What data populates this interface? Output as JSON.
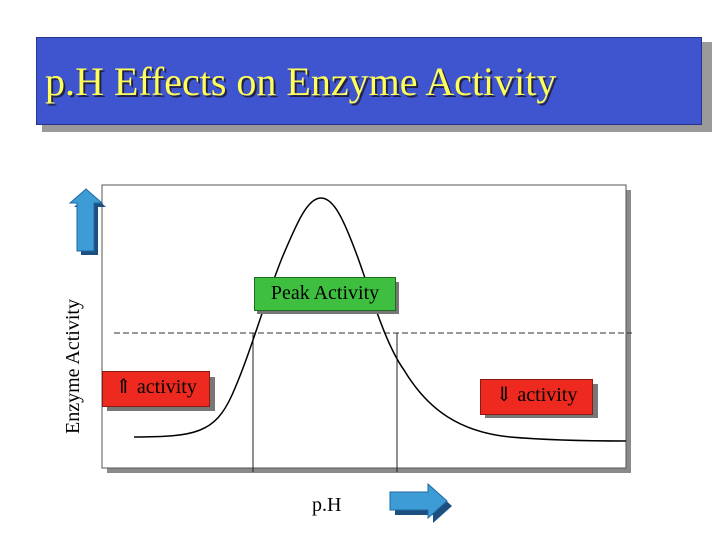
{
  "title": "p.H Effects on Enzyme Activity",
  "y_axis_label": "Enzyme Activity",
  "x_axis_label": "p.H",
  "labels": {
    "peak": "Peak Activity",
    "increase": "⇑ activity",
    "decrease": "⇓ activity"
  },
  "icons": {
    "y_arrow": "up-arrow-icon",
    "x_arrow": "right-arrow-icon"
  },
  "colors": {
    "title_bg": "#3f55cf",
    "title_text": "#ffff5a",
    "arrow": "#3d9bd6",
    "peak_label": "#3fbf3f",
    "activity_label": "#ee2a20",
    "curve": "#000000"
  }
}
